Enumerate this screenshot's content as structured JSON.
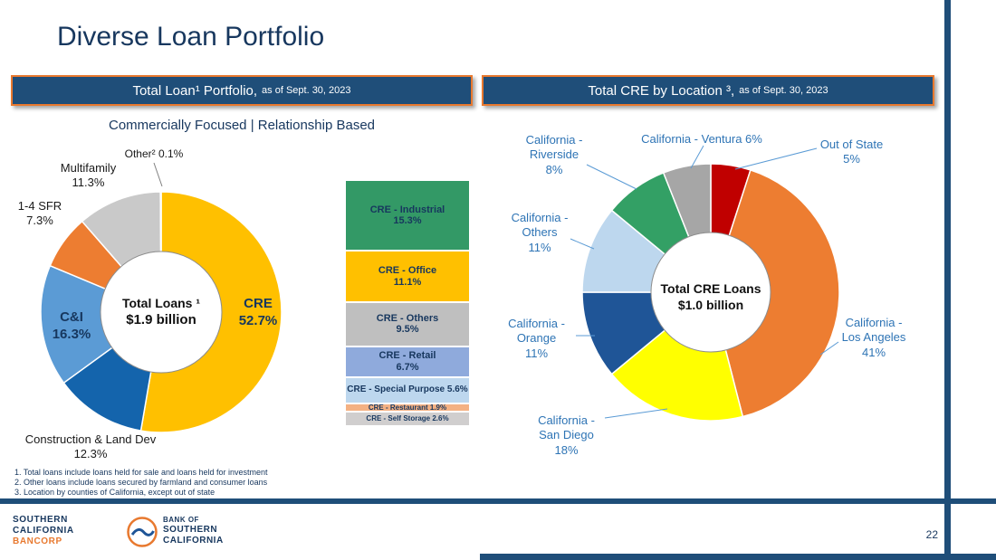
{
  "slide": {
    "title": "Diverse Loan Portfolio",
    "page_number": "22"
  },
  "left_panel": {
    "header_title": "Total Loan¹ Portfolio,",
    "header_date": "as of Sept. 30, 2023",
    "subtitle": "Commercially Focused | Relationship Based",
    "center_line1": "Total Loans ¹",
    "center_line2": "$1.9 billion",
    "labels": {
      "multifamily_name": "Multifamily",
      "multifamily_pct": "11.3%",
      "other_text": "Other² 0.1%",
      "sfr_name": "1-4 SFR",
      "sfr_pct": "7.3%",
      "ci_name": "C&I",
      "ci_pct": "16.3%",
      "cre_name": "CRE",
      "cre_pct": "52.7%",
      "construction_name": "Construction & Land Dev",
      "construction_pct": "12.3%"
    }
  },
  "right_panel": {
    "header_title": "Total CRE by Location ³,",
    "header_date": "as of Sept. 30, 2023",
    "center_line1": "Total CRE Loans",
    "center_line2": "$1.0 billion",
    "labels": {
      "riverside_l1": "California -",
      "riverside_l2": "Riverside",
      "riverside_pct": "8%",
      "ventura_text": "California - Ventura 6%",
      "outofstate_l1": "Out of State",
      "outofstate_pct": "5%",
      "others_l1": "California -",
      "others_l2": "Others",
      "others_pct": "11%",
      "orange_l1": "California -",
      "orange_l2": "Orange",
      "orange_pct": "11%",
      "sandiego_l1": "California -",
      "sandiego_l2": "San Diego",
      "sandiego_pct": "18%",
      "la_l1": "California -",
      "la_l2": "Los Angeles",
      "la_pct": "41%"
    }
  },
  "footnotes": [
    "1.  Total loans include loans held for sale and loans held for investment",
    "2.  Other loans include loans secured by farmland and consumer loans",
    "3.  Location by counties of California, except out of state"
  ],
  "footer": {
    "bancorp_l1": "SOUTHERN",
    "bancorp_l2": "CALIFORNIA",
    "bancorp_l3": "BANCORP",
    "bank_l1": "BANK OF",
    "bank_l2": "SOUTHERN",
    "bank_l3": "CALIFORNIA"
  },
  "chart_data": [
    {
      "type": "pie",
      "title": "Total Loan¹ Portfolio, as of Sept. 30, 2023",
      "subtitle": "Commercially Focused | Relationship Based",
      "donut": true,
      "center_label": "Total Loans¹ $1.9 billion",
      "start_angle_deg": 0,
      "direction": "clockwise",
      "series": [
        {
          "label": "CRE",
          "value": 52.7,
          "color": "#FFC000"
        },
        {
          "label": "Construction & Land Dev",
          "value": 12.3,
          "color": "#1464AC"
        },
        {
          "label": "C&I",
          "value": 16.3,
          "color": "#5B9BD5"
        },
        {
          "label": "1-4 SFR",
          "value": 7.3,
          "color": "#ED7D31"
        },
        {
          "label": "Multifamily",
          "value": 11.3,
          "color": "#C9C9C9"
        },
        {
          "label": "Other²",
          "value": 0.1,
          "color": "#FFFFFF"
        }
      ]
    },
    {
      "type": "bar",
      "title": "CRE composition (% of total loans)",
      "stacked": true,
      "total": 52.7,
      "segments": [
        {
          "label": "CRE - Industrial",
          "value": 15.3,
          "color": "#339966"
        },
        {
          "label": "CRE - Office",
          "value": 11.1,
          "color": "#FFC000"
        },
        {
          "label": "CRE - Others",
          "value": 9.5,
          "color": "#BFBFBF"
        },
        {
          "label": "CRE - Retail",
          "value": 6.7,
          "color": "#8FAADC"
        },
        {
          "label": "CRE - Special Purpose",
          "value": 5.6,
          "color": "#BDD7EE"
        },
        {
          "label": "CRE - Restaurant",
          "value": 1.9,
          "color": "#F4B183"
        },
        {
          "label": "CRE - Self Storage",
          "value": 2.6,
          "color": "#D0CECE"
        }
      ]
    },
    {
      "type": "pie",
      "title": "Total CRE by Location ³, as of Sept. 30, 2023",
      "donut": true,
      "center_label": "Total CRE Loans $1.0 billion",
      "start_angle_deg": 0,
      "direction": "clockwise",
      "series": [
        {
          "label": "Out of State",
          "value": 5,
          "color": "#C00000"
        },
        {
          "label": "California - Los Angeles",
          "value": 41,
          "color": "#ED7D31"
        },
        {
          "label": "California - San Diego",
          "value": 18,
          "color": "#FFFF00"
        },
        {
          "label": "California - Orange",
          "value": 11,
          "color": "#1F5597"
        },
        {
          "label": "California - Others",
          "value": 11,
          "color": "#BDD7EE"
        },
        {
          "label": "California - Riverside",
          "value": 8,
          "color": "#33A065"
        },
        {
          "label": "California - Ventura",
          "value": 6,
          "color": "#A6A6A6"
        }
      ]
    }
  ]
}
